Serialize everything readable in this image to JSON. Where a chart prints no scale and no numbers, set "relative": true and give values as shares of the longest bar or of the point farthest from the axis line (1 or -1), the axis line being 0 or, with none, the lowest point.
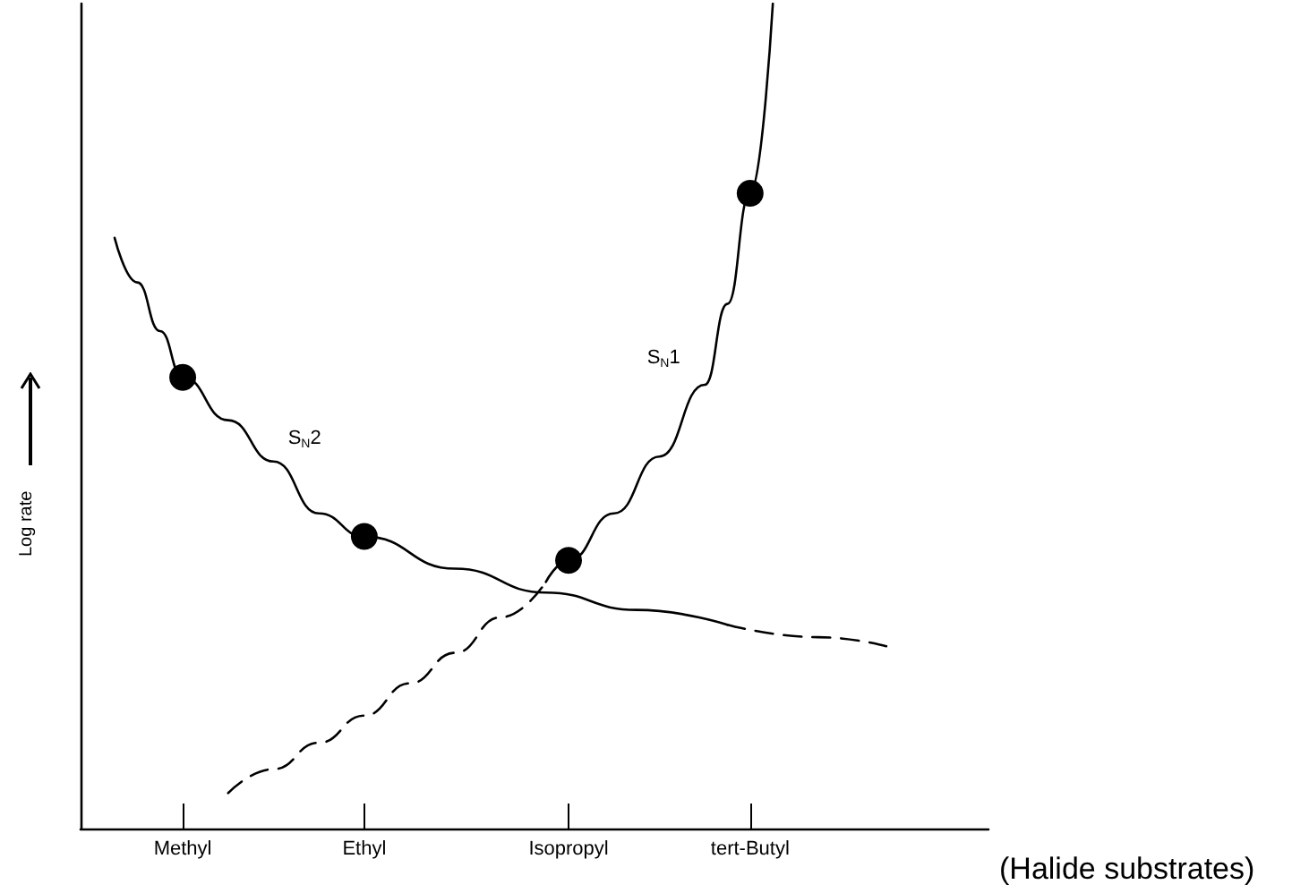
{
  "chart_data": {
    "type": "line",
    "relative": true,
    "xlabel": "(Halide substrates)",
    "ylabel": "Log rate",
    "grid": false,
    "legend": false,
    "marker": "none",
    "categories": [
      null,
      null,
      null,
      null,
      "Methyl",
      null,
      null,
      null,
      null,
      null,
      null,
      null,
      "Ethyl",
      null,
      null,
      null,
      null,
      null,
      null,
      null,
      null,
      "Isopropyl",
      null,
      null,
      null,
      null,
      null,
      null,
      null,
      "tert-Butyl",
      null,
      null,
      null,
      null,
      null,
      null,
      null,
      null,
      null,
      null
    ],
    "series": [
      {
        "name": "S$_{N}$2",
        "color": "#000000",
        "line_style": "solid",
        "values": [
          null,
          0.716,
          0.662,
          0.603,
          0.547,
          null,
          0.495,
          null,
          0.445,
          null,
          0.382,
          null,
          0.354,
          null,
          null,
          null,
          0.315,
          null,
          null,
          null,
          0.286,
          null,
          null,
          null,
          0.265,
          null,
          null,
          null,
          0.247,
          null,
          null,
          null,
          null,
          null,
          null,
          null,
          null,
          null,
          null,
          null
        ]
      },
      {
        "color": "#000000",
        "line_style": "dashed",
        "values": [
          null,
          null,
          null,
          null,
          null,
          null,
          null,
          null,
          null,
          null,
          null,
          null,
          null,
          null,
          null,
          null,
          null,
          null,
          null,
          null,
          null,
          null,
          null,
          null,
          null,
          null,
          null,
          null,
          0.247,
          null,
          null,
          null,
          0.232,
          null,
          null,
          0.221,
          null,
          null,
          null,
          null
        ]
      },
      {
        "color": "#000000",
        "line_style": "dashed",
        "values": [
          null,
          null,
          null,
          null,
          null,
          null,
          0.043,
          null,
          0.072,
          null,
          0.104,
          null,
          0.137,
          null,
          0.176,
          null,
          0.213,
          null,
          0.256,
          null,
          0.299,
          null,
          null,
          null,
          null,
          null,
          null,
          null,
          null,
          null,
          null,
          null,
          null,
          null,
          null,
          null,
          null,
          null,
          null,
          null
        ]
      },
      {
        "name": "S$_{N}$1",
        "color": "#000000",
        "line_style": "solid",
        "values": [
          null,
          null,
          null,
          null,
          null,
          null,
          null,
          null,
          null,
          null,
          null,
          null,
          null,
          null,
          null,
          null,
          null,
          null,
          null,
          null,
          0.299,
          0.325,
          null,
          0.382,
          null,
          0.451,
          null,
          0.538,
          0.636,
          0.77,
          1.0,
          null,
          null,
          null,
          null,
          null,
          null,
          null,
          null,
          null
        ]
      },
      {
        "type": "scatter",
        "marker": "circle",
        "color": "#000000",
        "values": [
          null,
          null,
          null,
          null,
          0.547,
          null,
          null,
          null,
          null,
          null,
          null,
          null,
          0.354,
          null,
          null,
          null,
          null,
          null,
          null,
          null,
          null,
          null,
          null,
          null,
          null,
          null,
          null,
          null,
          null,
          null,
          null,
          null,
          null,
          null,
          null,
          null,
          null,
          null,
          null,
          null
        ]
      },
      {
        "type": "scatter",
        "marker": "circle",
        "color": "#000000",
        "values": [
          null,
          null,
          null,
          null,
          null,
          null,
          null,
          null,
          null,
          null,
          null,
          null,
          null,
          null,
          null,
          null,
          null,
          null,
          null,
          null,
          null,
          0.325,
          null,
          null,
          null,
          null,
          null,
          null,
          null,
          0.77,
          null,
          null,
          null,
          null,
          null,
          null,
          null,
          null,
          null,
          null
        ]
      }
    ]
  }
}
